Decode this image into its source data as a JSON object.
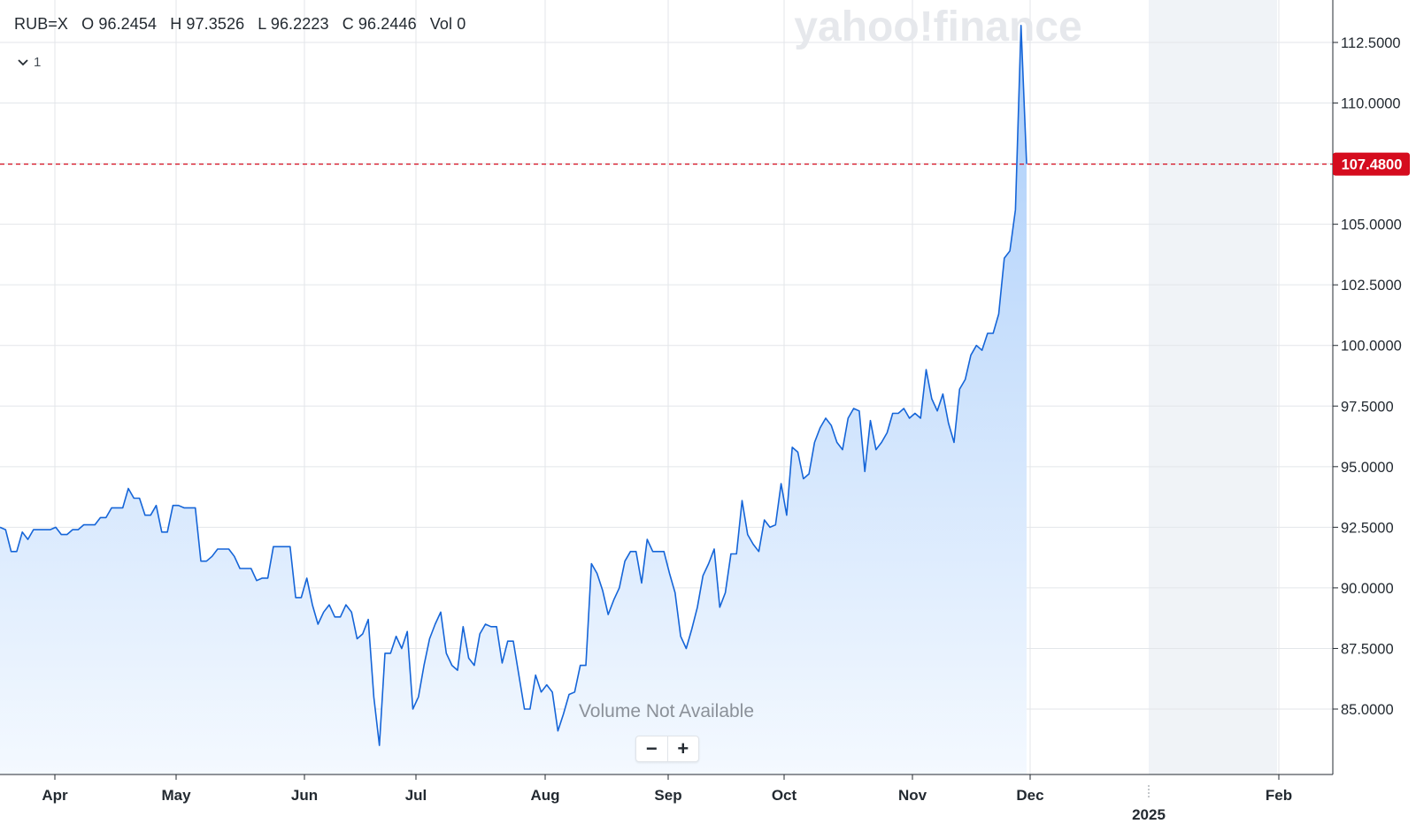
{
  "header": {
    "symbol": "RUB=X",
    "open": "O 96.2454",
    "high": "H 97.3526",
    "low": "L 96.2223",
    "close": "C 96.2446",
    "volume": "Vol 0",
    "series_count": "1"
  },
  "watermark": "yahoo!finance",
  "volume_label": "Volume Not Available",
  "zoom": {
    "out": "−",
    "in": "+"
  },
  "current_price": "107.4800",
  "colors": {
    "line": "#1565d8",
    "area_top": "#a9cdfa",
    "area_bottom": "#f4f9ff",
    "price_tag": "#d50c1e",
    "future_shade": "#f0f3f7",
    "grid": "#e3e6ea"
  },
  "icons": {
    "series_toggle": "chevron-down-icon"
  },
  "chart_data": {
    "type": "area",
    "y_axis_position": "right",
    "ylim": [
      83.5,
      113.5
    ],
    "y_ticks": [
      "112.5000",
      "110.0000",
      "107.5000",
      "105.0000",
      "102.5000",
      "100.0000",
      "97.5000",
      "95.0000",
      "92.5000",
      "90.0000",
      "87.5000",
      "85.0000"
    ],
    "x_ticks": [
      "Apr",
      "May",
      "Jun",
      "Jul",
      "Aug",
      "Sep",
      "Oct",
      "Nov",
      "Dec",
      "Feb"
    ],
    "x_year_label": "2025",
    "reference_line": 107.48,
    "future_shaded_region": [
      "2025-01-01",
      "2025-02-01"
    ],
    "series": [
      {
        "values": [
          92.5,
          92.4,
          91.5,
          91.5,
          92.3,
          92.0,
          92.4,
          92.4,
          92.4,
          92.4,
          92.5,
          92.2,
          92.2,
          92.4,
          92.4,
          92.6,
          92.6,
          92.6,
          92.9,
          92.9,
          93.3,
          93.3,
          93.3,
          94.1,
          93.7,
          93.7,
          93.0,
          93.0,
          93.4,
          92.3,
          92.3,
          93.4,
          93.4,
          93.3,
          93.3,
          93.3,
          91.1,
          91.1,
          91.3,
          91.6,
          91.6,
          91.6,
          91.3,
          90.8,
          90.8,
          90.8,
          90.3,
          90.4,
          90.4,
          91.7,
          91.7,
          91.7,
          91.7,
          89.6,
          89.6,
          90.4,
          89.3,
          88.5,
          89.0,
          89.3,
          88.8,
          88.8,
          89.3,
          89.0,
          87.9,
          88.1,
          88.7,
          85.5,
          83.5,
          87.3,
          87.3,
          88.0,
          87.5,
          88.2,
          85.0,
          85.5,
          86.8,
          87.9,
          88.5,
          89.0,
          87.3,
          86.8,
          86.6,
          88.4,
          87.1,
          86.8,
          88.1,
          88.5,
          88.4,
          88.4,
          86.9,
          87.8,
          87.8,
          86.4,
          85.0,
          85.0,
          86.4,
          85.7,
          86.0,
          85.7,
          84.1,
          84.8,
          85.6,
          85.7,
          86.8,
          86.8,
          91.0,
          90.6,
          89.9,
          88.9,
          89.5,
          90.0,
          91.1,
          91.5,
          91.5,
          90.2,
          92.0,
          91.5,
          91.5,
          91.5,
          90.6,
          89.8,
          88.0,
          87.5,
          88.3,
          89.2,
          90.5,
          91.0,
          91.6,
          89.2,
          89.8,
          91.4,
          91.4,
          93.6,
          92.2,
          91.8,
          91.5,
          92.8,
          92.5,
          92.6,
          94.3,
          93.0,
          95.8,
          95.6,
          94.5,
          94.7,
          96.0,
          96.6,
          97.0,
          96.7,
          96.0,
          95.7,
          97.0,
          97.4,
          97.3,
          94.8,
          96.9,
          95.7,
          96.0,
          96.4,
          97.2,
          97.2,
          97.4,
          97.0,
          97.2,
          97.0,
          99.0,
          97.8,
          97.3,
          98.0,
          96.8,
          96.0,
          98.2,
          98.6,
          99.6,
          100.0,
          99.8,
          100.5,
          100.5,
          101.3,
          103.6,
          103.9,
          105.6,
          113.2,
          107.48
        ]
      }
    ]
  }
}
